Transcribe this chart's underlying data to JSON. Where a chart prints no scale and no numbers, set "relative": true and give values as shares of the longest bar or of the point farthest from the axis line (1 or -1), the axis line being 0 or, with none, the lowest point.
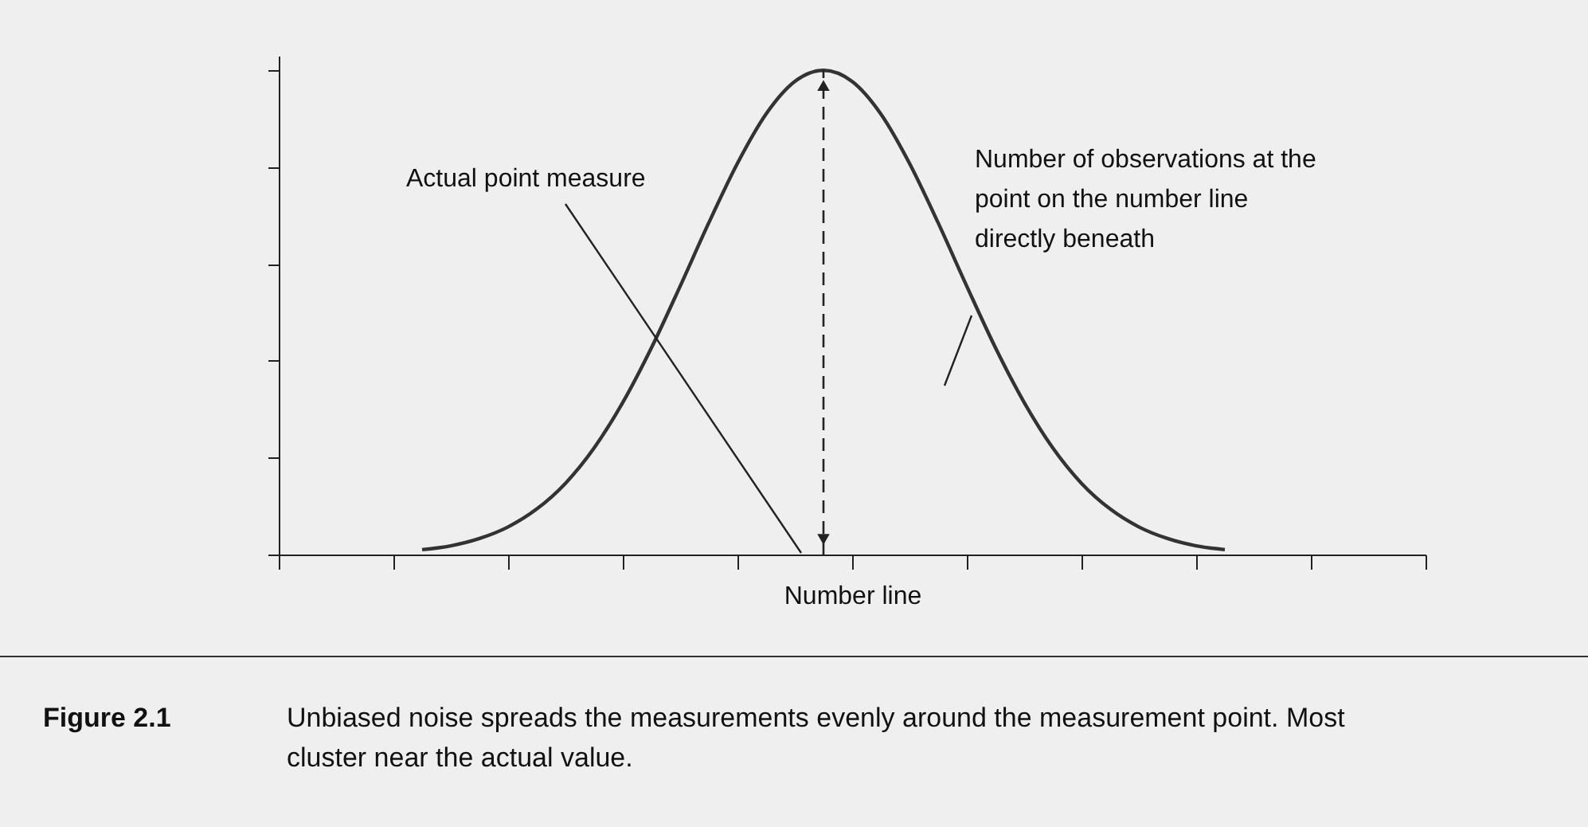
{
  "chart_data": {
    "type": "line",
    "relative": true,
    "xlabel": "Number line",
    "categories": [
      null,
      null,
      null,
      null,
      null,
      null,
      null,
      null,
      null,
      null,
      null,
      null,
      null,
      null,
      null,
      null,
      null,
      null,
      null,
      null,
      null,
      null,
      null,
      null,
      null,
      null,
      null,
      null,
      null,
      null,
      null,
      null,
      null,
      null,
      null,
      null,
      null,
      null,
      null,
      null,
      null
    ],
    "series": [
      {
        "color": "#333333",
        "values": [
          null,
          null,
          null,
          null,
          null,
          0.01,
          0.018,
          0.033,
          0.057,
          0.094,
          0.147,
          0.22,
          0.314,
          0.427,
          0.554,
          0.685,
          0.808,
          0.91,
          0.977,
          1,
          0.977,
          0.91,
          0.808,
          0.685,
          0.554,
          0.427,
          0.314,
          0.22,
          0.147,
          0.094,
          0.057,
          0.033,
          0.018,
          0.01,
          null,
          null,
          null,
          null,
          null,
          null,
          null
        ]
      }
    ],
    "annotations": [
      "Actual point measure",
      "Number of observations at the point on the number line directly beneath",
      "Figure 2.1",
      "Unbiased noise spreads the measurements evenly around the measurement point. Most cluster near the actual value."
    ],
    "tick_labels": false,
    "grid": false,
    "line_style": "solid"
  }
}
